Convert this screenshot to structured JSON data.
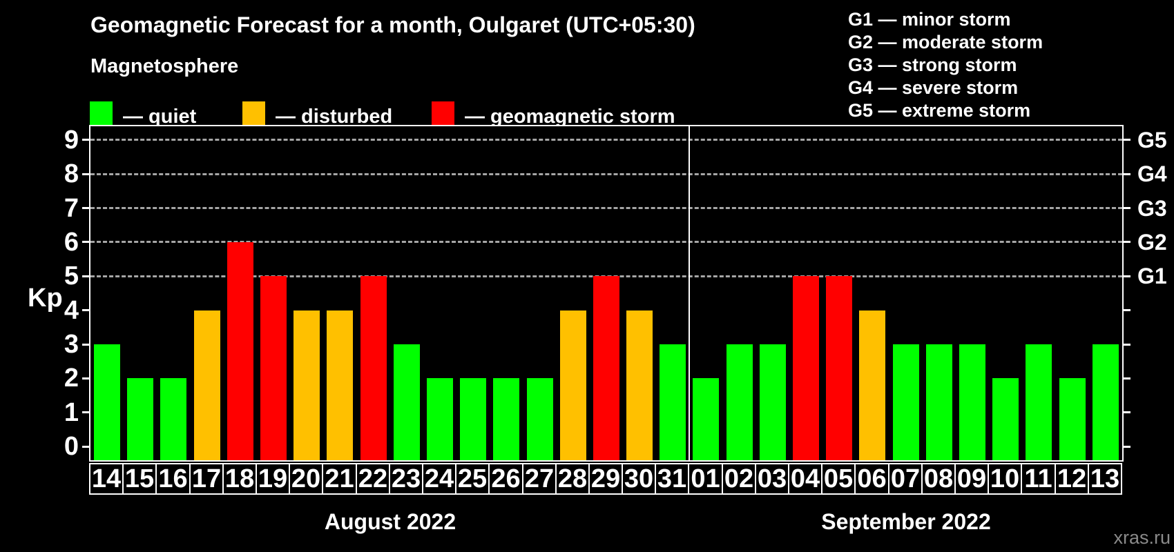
{
  "header": {
    "title": "Geomagnetic Forecast for a month, Oulgaret (UTC+05:30)",
    "subtitle": "Magnetosphere"
  },
  "legend": {
    "items": [
      {
        "key": "quiet",
        "label": "— quiet"
      },
      {
        "key": "disturbed",
        "label": "— disturbed"
      },
      {
        "key": "storm",
        "label": "— geomagnetic storm"
      }
    ]
  },
  "storm_scale_legend": {
    "items": [
      "G1 — minor storm",
      "G2 — moderate storm",
      "G3 — strong storm",
      "G4 — severe storm",
      "G5 — extreme storm"
    ]
  },
  "watermark": "xras.ru",
  "chart_data": {
    "type": "bar",
    "title": "Geomagnetic Forecast for a month, Oulgaret (UTC+05:30)",
    "ylabel": "Kp",
    "ylim": [
      -0.4,
      9.4
    ],
    "yticks": [
      0,
      1,
      2,
      3,
      4,
      5,
      6,
      7,
      8,
      9
    ],
    "grid_kp": [
      5,
      6,
      7,
      8,
      9
    ],
    "grid_style": "dashed",
    "legend_position": "top",
    "right_axis_labels": [
      {
        "label": "G1",
        "kp": 5
      },
      {
        "label": "G2",
        "kp": 6
      },
      {
        "label": "G3",
        "kp": 7
      },
      {
        "label": "G4",
        "kp": 8
      },
      {
        "label": "G5",
        "kp": 9
      }
    ],
    "colors": {
      "quiet": "#00ff00",
      "disturbed": "#ffc000",
      "storm": "#ff0000"
    },
    "background": "#000000",
    "sections": [
      {
        "label": "August 2022",
        "bars": [
          {
            "day": "14",
            "kp": 3,
            "level": "quiet"
          },
          {
            "day": "15",
            "kp": 2,
            "level": "quiet"
          },
          {
            "day": "16",
            "kp": 2,
            "level": "quiet"
          },
          {
            "day": "17",
            "kp": 4,
            "level": "disturbed"
          },
          {
            "day": "18",
            "kp": 6,
            "level": "storm"
          },
          {
            "day": "19",
            "kp": 5,
            "level": "storm"
          },
          {
            "day": "20",
            "kp": 4,
            "level": "disturbed"
          },
          {
            "day": "21",
            "kp": 4,
            "level": "disturbed"
          },
          {
            "day": "22",
            "kp": 5,
            "level": "storm"
          },
          {
            "day": "23",
            "kp": 3,
            "level": "quiet"
          },
          {
            "day": "24",
            "kp": 2,
            "level": "quiet"
          },
          {
            "day": "25",
            "kp": 2,
            "level": "quiet"
          },
          {
            "day": "26",
            "kp": 2,
            "level": "quiet"
          },
          {
            "day": "27",
            "kp": 2,
            "level": "quiet"
          },
          {
            "day": "28",
            "kp": 4,
            "level": "disturbed"
          },
          {
            "day": "29",
            "kp": 5,
            "level": "storm"
          },
          {
            "day": "30",
            "kp": 4,
            "level": "disturbed"
          },
          {
            "day": "31",
            "kp": 3,
            "level": "quiet"
          }
        ]
      },
      {
        "label": "September 2022",
        "bars": [
          {
            "day": "01",
            "kp": 2,
            "level": "quiet"
          },
          {
            "day": "02",
            "kp": 3,
            "level": "quiet"
          },
          {
            "day": "03",
            "kp": 3,
            "level": "quiet"
          },
          {
            "day": "04",
            "kp": 5,
            "level": "storm"
          },
          {
            "day": "05",
            "kp": 5,
            "level": "storm"
          },
          {
            "day": "06",
            "kp": 4,
            "level": "disturbed"
          },
          {
            "day": "07",
            "kp": 3,
            "level": "quiet"
          },
          {
            "day": "08",
            "kp": 3,
            "level": "quiet"
          },
          {
            "day": "09",
            "kp": 3,
            "level": "quiet"
          },
          {
            "day": "10",
            "kp": 2,
            "level": "quiet"
          },
          {
            "day": "11",
            "kp": 3,
            "level": "quiet"
          },
          {
            "day": "12",
            "kp": 2,
            "level": "quiet"
          },
          {
            "day": "13",
            "kp": 3,
            "level": "quiet"
          }
        ]
      }
    ]
  }
}
